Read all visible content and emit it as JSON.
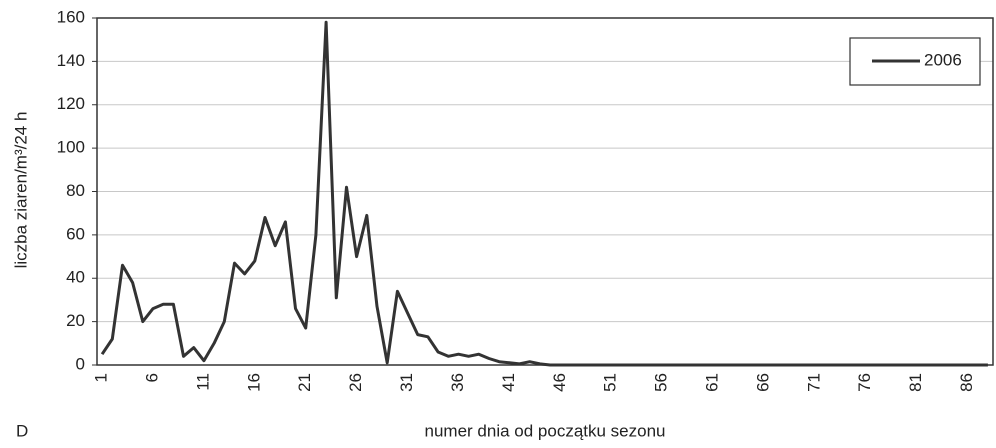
{
  "chart_data": {
    "type": "line",
    "panel_label": "D",
    "x_label": "numer dnia od początku sezonu",
    "y_label": "liczba ziaren/m³/24 h",
    "categories": [
      "1",
      null,
      null,
      null,
      null,
      "6",
      null,
      null,
      null,
      null,
      "11",
      null,
      null,
      null,
      null,
      "16",
      null,
      null,
      null,
      null,
      "21",
      null,
      null,
      null,
      null,
      "26",
      null,
      null,
      null,
      null,
      "31",
      null,
      null,
      null,
      null,
      "36",
      null,
      null,
      null,
      null,
      "41",
      null,
      null,
      null,
      null,
      "46",
      null,
      null,
      null,
      null,
      "51",
      null,
      null,
      null,
      null,
      "56",
      null,
      null,
      null,
      null,
      "61",
      null,
      null,
      null,
      null,
      "66",
      null,
      null,
      null,
      null,
      "71",
      null,
      null,
      null,
      null,
      "76",
      null,
      null,
      null,
      null,
      "81",
      null,
      null,
      null,
      null,
      "86",
      null,
      null
    ],
    "series": [
      {
        "name": "2006",
        "color": "#333333",
        "values": [
          5,
          12,
          46,
          38,
          20,
          26,
          28,
          28,
          4,
          8,
          2,
          10,
          20,
          47,
          42,
          48,
          68,
          55,
          66,
          26,
          17,
          60,
          158,
          31,
          82,
          50,
          69,
          27,
          1,
          34,
          24,
          14,
          13,
          6,
          4,
          5,
          4,
          5,
          3,
          1.5,
          1,
          0.5,
          1.5,
          0.5,
          0,
          0,
          0,
          0,
          0,
          0,
          0,
          0,
          0,
          0,
          0,
          0,
          0,
          0,
          0,
          0,
          0,
          0,
          0,
          0,
          0,
          0,
          0,
          0,
          0,
          0,
          0,
          0,
          0,
          0,
          0,
          0,
          0,
          0,
          0,
          0,
          0,
          0,
          0,
          0,
          0,
          0,
          0,
          0
        ]
      }
    ],
    "ylim": [
      0,
      160
    ],
    "yticks": [
      0,
      20,
      40,
      60,
      80,
      100,
      120,
      140,
      160
    ],
    "grid": true,
    "legend": "top-right"
  }
}
